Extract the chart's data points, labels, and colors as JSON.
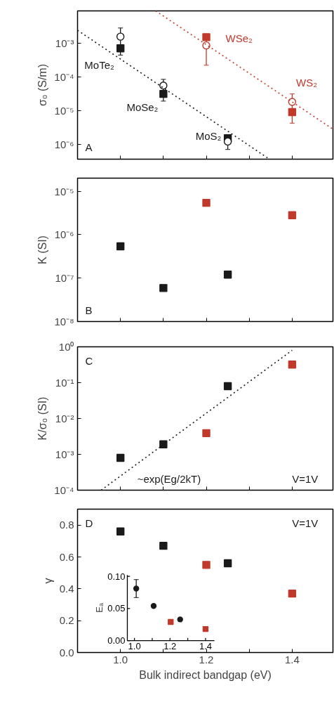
{
  "chart_data": [
    {
      "type": "scatter",
      "ylabel": "σ₀ (S/m)",
      "log": "y",
      "tick_labels": "y",
      "xlim": [
        0.9,
        1.495
      ],
      "xticks": [
        {
          "value": 1.0,
          "label": null
        },
        {
          "value": 1.1,
          "label": null
        },
        {
          "value": 1.2,
          "label": null
        },
        {
          "value": 1.3,
          "label": null
        },
        {
          "value": 1.4,
          "label": null
        }
      ],
      "ylim": [
        3.6e-07,
        0.009
      ],
      "yticks": [
        {
          "value": 1e-06,
          "label": "10⁻⁶"
        },
        {
          "value": 1e-05,
          "label": "10⁻⁵"
        },
        {
          "value": 0.0001,
          "label": "10⁻⁴"
        },
        {
          "value": 0.001,
          "label": "10⁻³"
        }
      ],
      "series": [
        {
          "color": "#1a1a1a",
          "marker": "square",
          "x": [
            1.0,
            1.1,
            1.25
          ],
          "values": [
            0.0007,
            3.1e-05,
            1.5e-06
          ]
        },
        {
          "color": "#1a1a1a",
          "marker": "circle",
          "x": [
            1.0,
            1.1,
            1.25
          ],
          "values": [
            0.00155,
            5.5e-05,
            1.2e-06
          ],
          "errors": [
            [
              0.00044,
              0.0028
            ],
            [
              1.9e-05,
              8.4e-05
            ],
            [
              7e-07,
              1.8e-06
            ]
          ]
        },
        {
          "color": "#c0392b",
          "marker": "square",
          "x": [
            1.2,
            1.4
          ],
          "values": [
            0.0015,
            9e-06
          ]
        },
        {
          "color": "#c0392b",
          "marker": "circle",
          "x": [
            1.2,
            1.4
          ],
          "values": [
            0.00085,
            1.8e-05
          ],
          "errors": [
            [
              0.00022,
              0.0017
            ],
            [
              4.2e-06,
              3.1e-05
            ]
          ]
        },
        {
          "type": "line",
          "color": "#1a1a1a",
          "line_style": "dotted",
          "marker": "none",
          "x": [
            0.9,
            1.347
          ],
          "values": [
            0.0024,
            3.6e-07
          ]
        },
        {
          "type": "line",
          "color": "#c0392b",
          "line_style": "dotted",
          "marker": "none",
          "x": [
            1.082,
            1.495
          ],
          "values": [
            0.009,
            2.8e-06
          ]
        }
      ],
      "annotations": [
        "MoTe₂",
        "MoSe₂",
        "MoS₂",
        "WSe₂",
        "WS₂",
        "A"
      ]
    },
    {
      "type": "scatter",
      "ylabel": "K (SI)",
      "log": "y",
      "tick_labels": "y",
      "xlim": [
        0.9,
        1.495
      ],
      "xticks": [
        {
          "value": 1.0,
          "label": null
        },
        {
          "value": 1.1,
          "label": null
        },
        {
          "value": 1.2,
          "label": null
        },
        {
          "value": 1.3,
          "label": null
        },
        {
          "value": 1.4,
          "label": null
        }
      ],
      "ylim": [
        1e-08,
        2e-05
      ],
      "yticks": [
        {
          "value": 1e-08,
          "label": "10⁻⁸"
        },
        {
          "value": 1e-07,
          "label": "10⁻⁷"
        },
        {
          "value": 1e-06,
          "label": "10⁻⁶"
        },
        {
          "value": 1e-05,
          "label": "10⁻⁵"
        }
      ],
      "series": [
        {
          "color": "#1a1a1a",
          "marker": "square",
          "x": [
            1.0,
            1.1,
            1.25
          ],
          "values": [
            5.4e-07,
            5.9e-08,
            1.2e-07
          ]
        },
        {
          "color": "#c0392b",
          "marker": "square",
          "x": [
            1.2,
            1.4
          ],
          "values": [
            5.4e-06,
            2.8e-06
          ]
        }
      ],
      "annotations": [
        "B"
      ]
    },
    {
      "type": "scatter",
      "ylabel": "K/σ₀ (SI)",
      "log": "y",
      "tick_labels": "y",
      "xlim": [
        0.9,
        1.495
      ],
      "xticks": [
        {
          "value": 1.0,
          "label": null
        },
        {
          "value": 1.1,
          "label": null
        },
        {
          "value": 1.2,
          "label": null
        },
        {
          "value": 1.3,
          "label": null
        },
        {
          "value": 1.4,
          "label": null
        }
      ],
      "ylim": [
        0.0001,
        1
      ],
      "yticks": [
        {
          "value": 0.0001,
          "label": "10⁻⁴"
        },
        {
          "value": 0.001,
          "label": "10⁻³"
        },
        {
          "value": 0.01,
          "label": "10⁻²"
        },
        {
          "value": 0.1,
          "label": "10⁻¹"
        },
        {
          "value": 1,
          "label": "10⁰"
        }
      ],
      "series": [
        {
          "color": "#1a1a1a",
          "marker": "square",
          "x": [
            1.0,
            1.1,
            1.25
          ],
          "values": [
            0.0008,
            0.0019,
            0.08
          ]
        },
        {
          "color": "#c0392b",
          "marker": "square",
          "x": [
            1.2,
            1.4
          ],
          "values": [
            0.0039,
            0.32
          ]
        },
        {
          "type": "line",
          "color": "#1a1a1a",
          "line_style": "dotted",
          "marker": "none",
          "x": [
            0.955,
            1.4
          ],
          "values": [
            0.0001,
            0.8
          ]
        }
      ],
      "annotations": [
        "~exp(Eg/2kT)",
        "C",
        "V=1V"
      ]
    },
    {
      "type": "scatter",
      "ylabel": "γ",
      "xlabel": "Bulk indirect bandgap (eV)",
      "xlim": [
        0.9,
        1.495
      ],
      "xticks": [
        {
          "value": 1.0,
          "label": "1.0"
        },
        {
          "value": 1.1,
          "label": null
        },
        {
          "value": 1.2,
          "label": "1.2"
        },
        {
          "value": 1.3,
          "label": null
        },
        {
          "value": 1.4,
          "label": "1.4"
        }
      ],
      "ylim": [
        0,
        0.9
      ],
      "yticks": [
        {
          "value": 0,
          "label": "0.0"
        },
        {
          "value": 0.2,
          "label": "0.2"
        },
        {
          "value": 0.4,
          "label": "0.4"
        },
        {
          "value": 0.6,
          "label": "0.6"
        },
        {
          "value": 0.8,
          "label": "0.8"
        }
      ],
      "series": [
        {
          "color": "#1a1a1a",
          "marker": "square",
          "x": [
            1.0,
            1.1,
            1.25
          ],
          "values": [
            0.76,
            0.67,
            0.56
          ]
        },
        {
          "color": "#c0392b",
          "marker": "square",
          "x": [
            1.2,
            1.4
          ],
          "values": [
            0.55,
            0.37
          ]
        }
      ],
      "annotations": [
        "D",
        "V=1V"
      ]
    },
    {
      "type": "scatter",
      "ylabel": "Eₐ",
      "xlim": [
        0.96,
        1.45
      ],
      "xticks": [
        {
          "value": 1.0,
          "label": "1.0"
        },
        {
          "value": 1.1,
          "label": null
        },
        {
          "value": 1.2,
          "label": "1.2"
        },
        {
          "value": 1.3,
          "label": null
        },
        {
          "value": 1.4,
          "label": "1.4"
        }
      ],
      "ylim": [
        0,
        0.102
      ],
      "yticks": [
        {
          "value": 0,
          "label": "0.00"
        },
        {
          "value": 0.05,
          "label": "0.05"
        },
        {
          "value": 0.1,
          "label": "0.10"
        }
      ],
      "series": [
        {
          "color": "#1a1a1a",
          "marker": "circle",
          "x": [
            1.01,
            1.108,
            1.257
          ],
          "values": [
            0.081,
            0.054,
            0.033
          ],
          "errors": [
            0.014,
            null,
            null
          ]
        },
        {
          "color": "#c0392b",
          "marker": "square",
          "x": [
            1.204,
            1.4
          ],
          "values": [
            0.029,
            0.018
          ]
        }
      ]
    }
  ]
}
